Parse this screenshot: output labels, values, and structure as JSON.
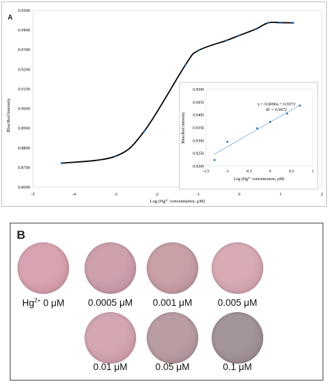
{
  "panel_a": {
    "letter": "A",
    "chart_data": {
      "type": "line",
      "title": "",
      "xlabel": "Log (Hg2+ concentration, μM)",
      "ylabel": "Blue/Red Intensity",
      "xlim": [
        -5,
        2
      ],
      "ylim": [
        0.86,
        0.95
      ],
      "x_ticks": [
        "-5",
        "-4",
        "-3",
        "-2",
        "-1",
        "0",
        "1",
        "2"
      ],
      "y_ticks": [
        "0.8600",
        "0.8700",
        "0.8800",
        "0.8900",
        "0.9000",
        "0.9100",
        "0.9200",
        "0.9300",
        "0.9400",
        "0.9500"
      ],
      "series": [
        {
          "x": [
            -4.301,
            -3.0,
            -2.301,
            -1.301,
            -1.0,
            -0.301,
            0.0,
            0.398,
            0.699,
            1.0,
            1.301
          ],
          "y": [
            0.8722,
            0.8757,
            0.8885,
            0.9224,
            0.9295,
            0.9348,
            0.9373,
            0.9405,
            0.9437,
            0.9438,
            0.9437
          ]
        }
      ],
      "grid": false,
      "marker_color": "#2e75b6",
      "line_color": "#000000"
    },
    "inset": {
      "chart_data": {
        "type": "scatter",
        "title": "",
        "xlabel": "Log (Hg2+ concentration, μM)",
        "ylabel": "Blue/Red Intensity",
        "xlim": [
          -1.5,
          1
        ],
        "ylim": [
          0.92,
          0.95
        ],
        "x_ticks": [
          "-1.5",
          "-1",
          "-0.5",
          "0",
          "0.5",
          "1"
        ],
        "y_ticks": [
          "0.9200",
          "0.9250",
          "0.9300",
          "0.9350",
          "0.9400",
          "0.9450",
          "0.9500"
        ],
        "series": [
          {
            "x": [
              -1.301,
              -1.0,
              -0.301,
              0.0,
              0.398,
              0.699
            ],
            "y": [
              0.9224,
              0.9295,
              0.9348,
              0.9373,
              0.9405,
              0.9437
            ]
          }
        ],
        "trendline": {
          "slope": 0.0096,
          "intercept": 0.9372,
          "x_range": [
            -1.301,
            0.699
          ]
        },
        "equation": "y = 0.0096x + 0.9372",
        "r2": "R² = 0.9672",
        "grid": false,
        "marker_color": "#2e75b6"
      }
    }
  },
  "panel_b": {
    "letter": "B",
    "wells": [
      {
        "label_prefix": "Hg",
        "label_sup": "2+",
        "label": " 0 μM",
        "color": "#d9a4b1",
        "shade": "#c48a99"
      },
      {
        "label": "0.0005 μM",
        "color": "#cda0ac",
        "shade": "#b9899a"
      },
      {
        "label": "0.001 μM",
        "color": "#c8a0a6",
        "shade": "#b38892"
      },
      {
        "label": "0.005 μM",
        "color": "#d8abb4",
        "shade": "#c294a0"
      },
      {
        "label": "0.01 μM",
        "color": "#d3a6b1",
        "shade": "#bf8f9d"
      },
      {
        "label": "0.05 μM",
        "color": "#b89ea3",
        "shade": "#a3888e"
      },
      {
        "label": "0.1 μM",
        "color": "#a3949a",
        "shade": "#8e7f85"
      }
    ]
  }
}
